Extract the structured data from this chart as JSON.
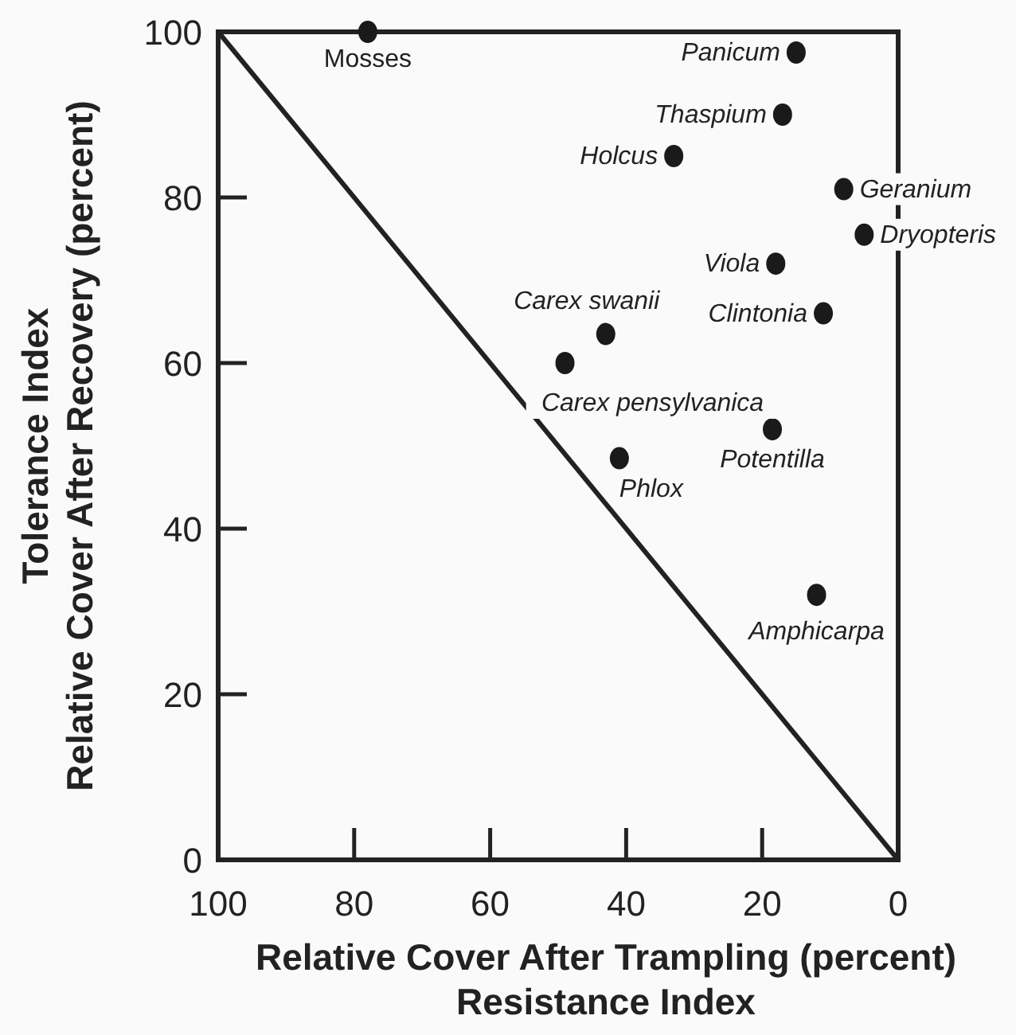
{
  "chart_data": {
    "type": "scatter",
    "xlabel": "Relative Cover After Trampling (percent)\nResistance Index",
    "ylabel": "Tolerance Index\nRelative Cover After Recovery (percent)",
    "xlim": [
      100,
      0
    ],
    "ylim": [
      0,
      100
    ],
    "xticks": [
      100,
      80,
      60,
      40,
      20,
      0
    ],
    "yticks": [
      0,
      20,
      40,
      60,
      80,
      100
    ],
    "grid": false,
    "marker": "circle",
    "series": [
      {
        "type": "line",
        "color": "#222222",
        "x": [
          100,
          0
        ],
        "values": [
          100,
          0
        ],
        "line_style": "solid",
        "marker": "none"
      },
      {
        "color": "#1a1a1a",
        "x": [
          78,
          15,
          17,
          33,
          8,
          5,
          18,
          11,
          43,
          49,
          18.5,
          41,
          12
        ],
        "values": [
          100,
          97.5,
          90,
          85,
          81,
          75.5,
          72,
          66,
          63.5,
          60,
          52,
          48.5,
          32
        ]
      }
    ],
    "annotations": [
      {
        "text": "Mosses",
        "x": 78,
        "y": 100
      },
      {
        "text": "Panicum",
        "x": 15,
        "y": 97.5
      },
      {
        "text": "Thaspium",
        "x": 17,
        "y": 90
      },
      {
        "text": "Holcus",
        "x": 33,
        "y": 85
      },
      {
        "text": "Geranium",
        "x": 8,
        "y": 81
      },
      {
        "text": "Dryopteris",
        "x": 5,
        "y": 75.5
      },
      {
        "text": "Viola",
        "x": 18,
        "y": 72
      },
      {
        "text": "Clintonia",
        "x": 11,
        "y": 66
      },
      {
        "text": "Carex swanii",
        "x": 43,
        "y": 63.5
      },
      {
        "text": "Carex pensylvanica",
        "x": 49,
        "y": 60
      },
      {
        "text": "Potentilla",
        "x": 18.5,
        "y": 52
      },
      {
        "text": "Phlox",
        "x": 41,
        "y": 48.5
      },
      {
        "text": "Amphicarpa",
        "x": 12,
        "y": 32
      }
    ]
  }
}
